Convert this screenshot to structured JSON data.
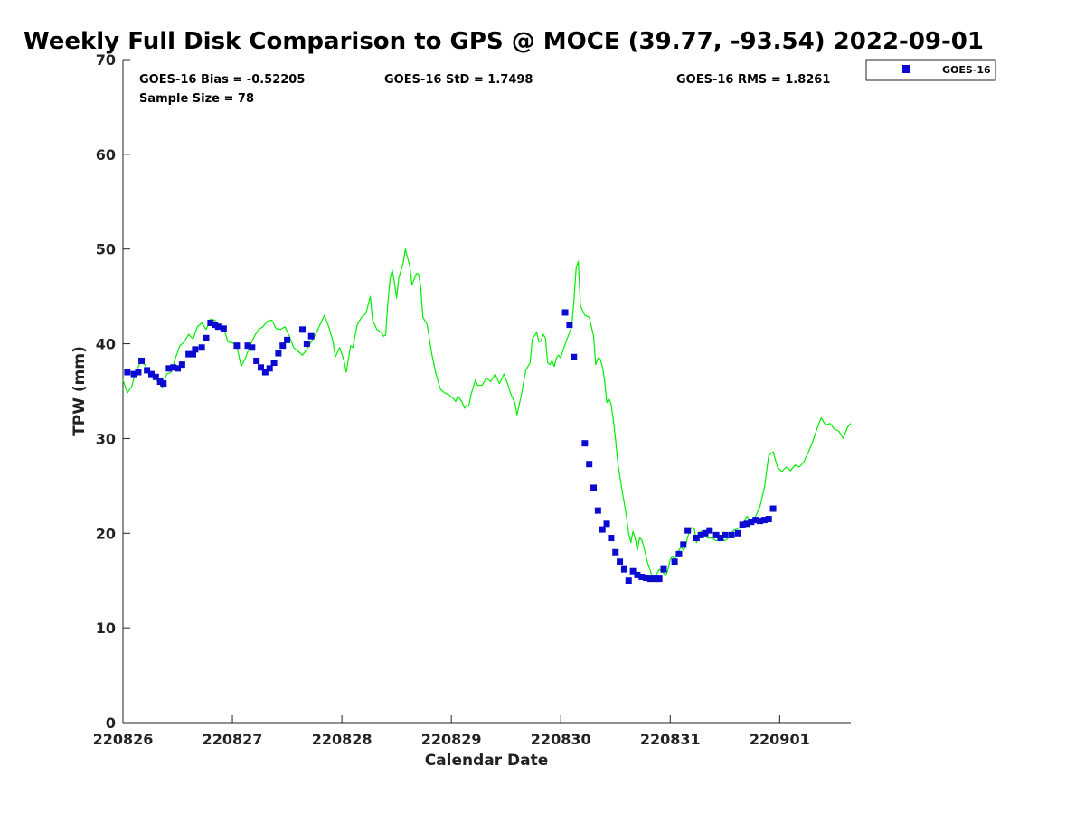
{
  "chart_data": {
    "type": "line",
    "title": "Weekly Full Disk Comparison to GPS @ MOCE (39.77, -93.54) 2022-09-01",
    "xlabel": "Calendar Date",
    "ylabel": "TPW (mm)",
    "xlim": [
      0,
      6.65
    ],
    "ylim": [
      0,
      70
    ],
    "x_ticks": [
      {
        "value": 0,
        "label": "220826"
      },
      {
        "value": 1,
        "label": "220827"
      },
      {
        "value": 2,
        "label": "220828"
      },
      {
        "value": 3,
        "label": "220829"
      },
      {
        "value": 4,
        "label": "220830"
      },
      {
        "value": 5,
        "label": "220831"
      },
      {
        "value": 6,
        "label": "220901"
      }
    ],
    "y_ticks": [
      0,
      10,
      20,
      30,
      40,
      50,
      60,
      70
    ],
    "stats": {
      "bias": "GOES-16 Bias = -0.52205",
      "std": "GOES-16 StD = 1.7498",
      "rms": "GOES-16 RMS = 1.8261",
      "sample": "Sample Size = 78"
    },
    "legend": [
      {
        "name": "GOES-16",
        "color": "#0a0ad0",
        "marker": "square"
      }
    ],
    "gps_color": "#00ee00",
    "series": [
      {
        "name": "GPS",
        "color": "#00ee00",
        "points": [
          [
            0,
            36.2
          ],
          [
            0.04,
            34.8
          ],
          [
            0.08,
            35.5
          ],
          [
            0.12,
            37.2
          ],
          [
            0.16,
            38.0
          ],
          [
            0.2,
            37.8
          ],
          [
            0.24,
            37.0
          ],
          [
            0.28,
            36.5
          ],
          [
            0.32,
            36.0
          ],
          [
            0.36,
            35.4
          ],
          [
            0.4,
            36.8
          ],
          [
            0.44,
            37.0
          ],
          [
            0.48,
            38.5
          ],
          [
            0.52,
            39.8
          ],
          [
            0.56,
            40.2
          ],
          [
            0.6,
            41.0
          ],
          [
            0.64,
            40.5
          ],
          [
            0.68,
            41.8
          ],
          [
            0.72,
            42.2
          ],
          [
            0.76,
            41.5
          ],
          [
            0.8,
            42.6
          ],
          [
            0.84,
            42.5
          ],
          [
            0.88,
            41.8
          ],
          [
            0.92,
            41.6
          ],
          [
            0.96,
            40.2
          ],
          [
            1.0,
            40.1
          ],
          [
            1.04,
            39.8
          ],
          [
            1.08,
            37.6
          ],
          [
            1.12,
            38.5
          ],
          [
            1.16,
            39.8
          ],
          [
            1.2,
            40.8
          ],
          [
            1.24,
            41.5
          ],
          [
            1.28,
            41.8
          ],
          [
            1.32,
            42.4
          ],
          [
            1.36,
            42.5
          ],
          [
            1.4,
            41.6
          ],
          [
            1.44,
            41.5
          ],
          [
            1.48,
            41.8
          ],
          [
            1.52,
            40.8
          ],
          [
            1.56,
            39.6
          ],
          [
            1.6,
            39.2
          ],
          [
            1.64,
            38.8
          ],
          [
            1.68,
            39.4
          ],
          [
            1.72,
            40.2
          ],
          [
            1.76,
            41.0
          ],
          [
            1.8,
            42.0
          ],
          [
            1.84,
            43.0
          ],
          [
            1.88,
            41.8
          ],
          [
            1.92,
            40.2
          ],
          [
            1.94,
            38.6
          ],
          [
            1.98,
            39.6
          ],
          [
            2.02,
            38.2
          ],
          [
            2.04,
            37.0
          ],
          [
            2.08,
            39.8
          ],
          [
            2.1,
            39.6
          ],
          [
            2.14,
            42.0
          ],
          [
            2.18,
            42.8
          ],
          [
            2.22,
            43.2
          ],
          [
            2.26,
            45.0
          ],
          [
            2.28,
            42.5
          ],
          [
            2.32,
            41.5
          ],
          [
            2.36,
            41.2
          ],
          [
            2.38,
            40.8
          ],
          [
            2.4,
            40.9
          ],
          [
            2.42,
            44.2
          ],
          [
            2.44,
            46.8
          ],
          [
            2.46,
            47.8
          ],
          [
            2.48,
            46.5
          ],
          [
            2.5,
            44.8
          ],
          [
            2.52,
            47.0
          ],
          [
            2.56,
            48.5
          ],
          [
            2.58,
            50.0
          ],
          [
            2.62,
            48.2
          ],
          [
            2.64,
            46.2
          ],
          [
            2.68,
            47.4
          ],
          [
            2.7,
            47.4
          ],
          [
            2.72,
            46.0
          ],
          [
            2.74,
            42.8
          ],
          [
            2.76,
            42.4
          ],
          [
            2.78,
            42.0
          ],
          [
            2.82,
            39.0
          ],
          [
            2.86,
            36.8
          ],
          [
            2.9,
            35.2
          ],
          [
            2.94,
            34.8
          ],
          [
            2.98,
            34.6
          ],
          [
            3.02,
            34.2
          ],
          [
            3.04,
            33.9
          ],
          [
            3.06,
            34.5
          ],
          [
            3.1,
            33.8
          ],
          [
            3.12,
            33.2
          ],
          [
            3.14,
            33.5
          ],
          [
            3.16,
            33.4
          ],
          [
            3.18,
            34.6
          ],
          [
            3.22,
            36.2
          ],
          [
            3.24,
            35.6
          ],
          [
            3.28,
            35.6
          ],
          [
            3.32,
            36.4
          ],
          [
            3.36,
            36.0
          ],
          [
            3.4,
            36.8
          ],
          [
            3.44,
            35.8
          ],
          [
            3.48,
            36.8
          ],
          [
            3.52,
            35.6
          ],
          [
            3.54,
            34.8
          ],
          [
            3.58,
            33.8
          ],
          [
            3.6,
            32.5
          ],
          [
            3.64,
            34.6
          ],
          [
            3.68,
            37.2
          ],
          [
            3.72,
            38.0
          ],
          [
            3.74,
            40.5
          ],
          [
            3.78,
            41.2
          ],
          [
            3.8,
            40.2
          ],
          [
            3.82,
            40.3
          ],
          [
            3.84,
            41.0
          ],
          [
            3.86,
            40.6
          ],
          [
            3.88,
            38.0
          ],
          [
            3.9,
            37.8
          ],
          [
            3.92,
            38.2
          ],
          [
            3.94,
            37.6
          ],
          [
            3.96,
            38.5
          ],
          [
            3.98,
            38.8
          ],
          [
            4.0,
            38.5
          ],
          [
            4.02,
            39.3
          ],
          [
            4.06,
            40.6
          ],
          [
            4.1,
            41.8
          ],
          [
            4.12,
            44.5
          ],
          [
            4.14,
            48.0
          ],
          [
            4.16,
            48.7
          ],
          [
            4.18,
            44.0
          ],
          [
            4.22,
            43.0
          ],
          [
            4.26,
            42.8
          ],
          [
            4.3,
            40.8
          ],
          [
            4.32,
            37.8
          ],
          [
            4.34,
            38.5
          ],
          [
            4.36,
            38.4
          ],
          [
            4.38,
            37.6
          ],
          [
            4.4,
            36.2
          ],
          [
            4.42,
            33.8
          ],
          [
            4.44,
            34.2
          ],
          [
            4.46,
            33.6
          ],
          [
            4.48,
            32.0
          ],
          [
            4.5,
            30.0
          ],
          [
            4.52,
            27.5
          ],
          [
            4.54,
            26.0
          ],
          [
            4.56,
            24.5
          ],
          [
            4.58,
            23.2
          ],
          [
            4.6,
            21.8
          ],
          [
            4.62,
            20.0
          ],
          [
            4.64,
            19.0
          ],
          [
            4.66,
            20.2
          ],
          [
            4.68,
            19.5
          ],
          [
            4.7,
            18.2
          ],
          [
            4.72,
            19.5
          ],
          [
            4.74,
            19.3
          ],
          [
            4.76,
            18.5
          ],
          [
            4.78,
            17.5
          ],
          [
            4.8,
            16.6
          ],
          [
            4.82,
            16.0
          ],
          [
            4.84,
            15.0
          ],
          [
            4.86,
            15.5
          ],
          [
            4.88,
            15.8
          ],
          [
            4.9,
            16.2
          ],
          [
            4.92,
            16.0
          ],
          [
            4.94,
            15.8
          ],
          [
            4.96,
            15.5
          ],
          [
            4.98,
            16.2
          ],
          [
            5.0,
            17.2
          ],
          [
            5.02,
            17.6
          ],
          [
            5.04,
            17.2
          ],
          [
            5.06,
            17.8
          ],
          [
            5.08,
            18.2
          ],
          [
            5.1,
            18.6
          ],
          [
            5.12,
            18.2
          ],
          [
            5.14,
            18.6
          ],
          [
            5.16,
            19.6
          ],
          [
            5.18,
            20.4
          ],
          [
            5.2,
            20.6
          ],
          [
            5.22,
            20.5
          ],
          [
            5.24,
            19.0
          ],
          [
            5.26,
            19.8
          ],
          [
            5.28,
            20.2
          ],
          [
            5.3,
            20.0
          ],
          [
            5.34,
            19.5
          ],
          [
            5.38,
            19.5
          ],
          [
            5.42,
            19.2
          ],
          [
            5.46,
            19.4
          ],
          [
            5.5,
            19.2
          ],
          [
            5.54,
            19.6
          ],
          [
            5.58,
            20.3
          ],
          [
            5.62,
            20.5
          ],
          [
            5.66,
            20.8
          ],
          [
            5.7,
            21.8
          ],
          [
            5.74,
            21.2
          ],
          [
            5.78,
            21.8
          ],
          [
            5.82,
            22.8
          ],
          [
            5.86,
            24.8
          ],
          [
            5.9,
            28.2
          ],
          [
            5.94,
            28.6
          ],
          [
            5.98,
            27.0
          ],
          [
            6.02,
            26.5
          ],
          [
            6.06,
            27.0
          ],
          [
            6.1,
            26.6
          ],
          [
            6.14,
            27.2
          ],
          [
            6.18,
            27.0
          ],
          [
            6.22,
            27.5
          ],
          [
            6.26,
            28.5
          ],
          [
            6.3,
            29.6
          ],
          [
            6.34,
            31.0
          ],
          [
            6.38,
            32.2
          ],
          [
            6.42,
            31.4
          ],
          [
            6.46,
            31.6
          ],
          [
            6.5,
            31.0
          ],
          [
            6.54,
            30.8
          ],
          [
            6.58,
            30.0
          ],
          [
            6.62,
            31.2
          ],
          [
            6.65,
            31.6
          ]
        ]
      },
      {
        "name": "GOES-16",
        "color": "#0a0ad0",
        "points": [
          [
            0.04,
            37.0
          ],
          [
            0.1,
            36.8
          ],
          [
            0.14,
            37.0
          ],
          [
            0.17,
            38.2
          ],
          [
            0.22,
            37.2
          ],
          [
            0.26,
            36.8
          ],
          [
            0.3,
            36.5
          ],
          [
            0.34,
            36.0
          ],
          [
            0.37,
            35.8
          ],
          [
            0.42,
            37.4
          ],
          [
            0.46,
            37.5
          ],
          [
            0.5,
            37.4
          ],
          [
            0.54,
            37.8
          ],
          [
            0.6,
            38.9
          ],
          [
            0.64,
            38.9
          ],
          [
            0.66,
            39.4
          ],
          [
            0.72,
            39.6
          ],
          [
            0.76,
            40.6
          ],
          [
            0.8,
            42.2
          ],
          [
            0.84,
            42.0
          ],
          [
            0.87,
            41.8
          ],
          [
            0.92,
            41.6
          ],
          [
            1.04,
            39.8
          ],
          [
            1.14,
            39.8
          ],
          [
            1.18,
            39.6
          ],
          [
            1.22,
            38.2
          ],
          [
            1.26,
            37.5
          ],
          [
            1.3,
            37.0
          ],
          [
            1.34,
            37.4
          ],
          [
            1.38,
            38.0
          ],
          [
            1.42,
            39.0
          ],
          [
            1.46,
            39.8
          ],
          [
            1.5,
            40.4
          ],
          [
            1.64,
            41.5
          ],
          [
            1.68,
            40.0
          ],
          [
            1.72,
            40.8
          ],
          [
            4.04,
            43.3
          ],
          [
            4.08,
            42.0
          ],
          [
            4.12,
            38.6
          ],
          [
            4.22,
            29.5
          ],
          [
            4.26,
            27.3
          ],
          [
            4.3,
            24.8
          ],
          [
            4.34,
            22.4
          ],
          [
            4.38,
            20.4
          ],
          [
            4.42,
            21.0
          ],
          [
            4.46,
            19.5
          ],
          [
            4.5,
            18.0
          ],
          [
            4.54,
            17.0
          ],
          [
            4.58,
            16.2
          ],
          [
            4.62,
            15.0
          ],
          [
            4.66,
            16.0
          ],
          [
            4.7,
            15.6
          ],
          [
            4.74,
            15.4
          ],
          [
            4.78,
            15.3
          ],
          [
            4.82,
            15.2
          ],
          [
            4.86,
            15.2
          ],
          [
            4.9,
            15.2
          ],
          [
            4.94,
            16.2
          ],
          [
            5.04,
            17.0
          ],
          [
            5.08,
            17.8
          ],
          [
            5.12,
            18.8
          ],
          [
            5.16,
            20.3
          ],
          [
            5.24,
            19.5
          ],
          [
            5.28,
            19.8
          ],
          [
            5.32,
            20.0
          ],
          [
            5.36,
            20.3
          ],
          [
            5.42,
            19.8
          ],
          [
            5.46,
            19.5
          ],
          [
            5.5,
            19.8
          ],
          [
            5.56,
            19.8
          ],
          [
            5.62,
            20.0
          ],
          [
            5.66,
            20.9
          ],
          [
            5.7,
            21.0
          ],
          [
            5.74,
            21.2
          ],
          [
            5.78,
            21.4
          ],
          [
            5.82,
            21.3
          ],
          [
            5.86,
            21.4
          ],
          [
            5.9,
            21.5
          ],
          [
            5.94,
            22.6
          ]
        ]
      }
    ]
  }
}
